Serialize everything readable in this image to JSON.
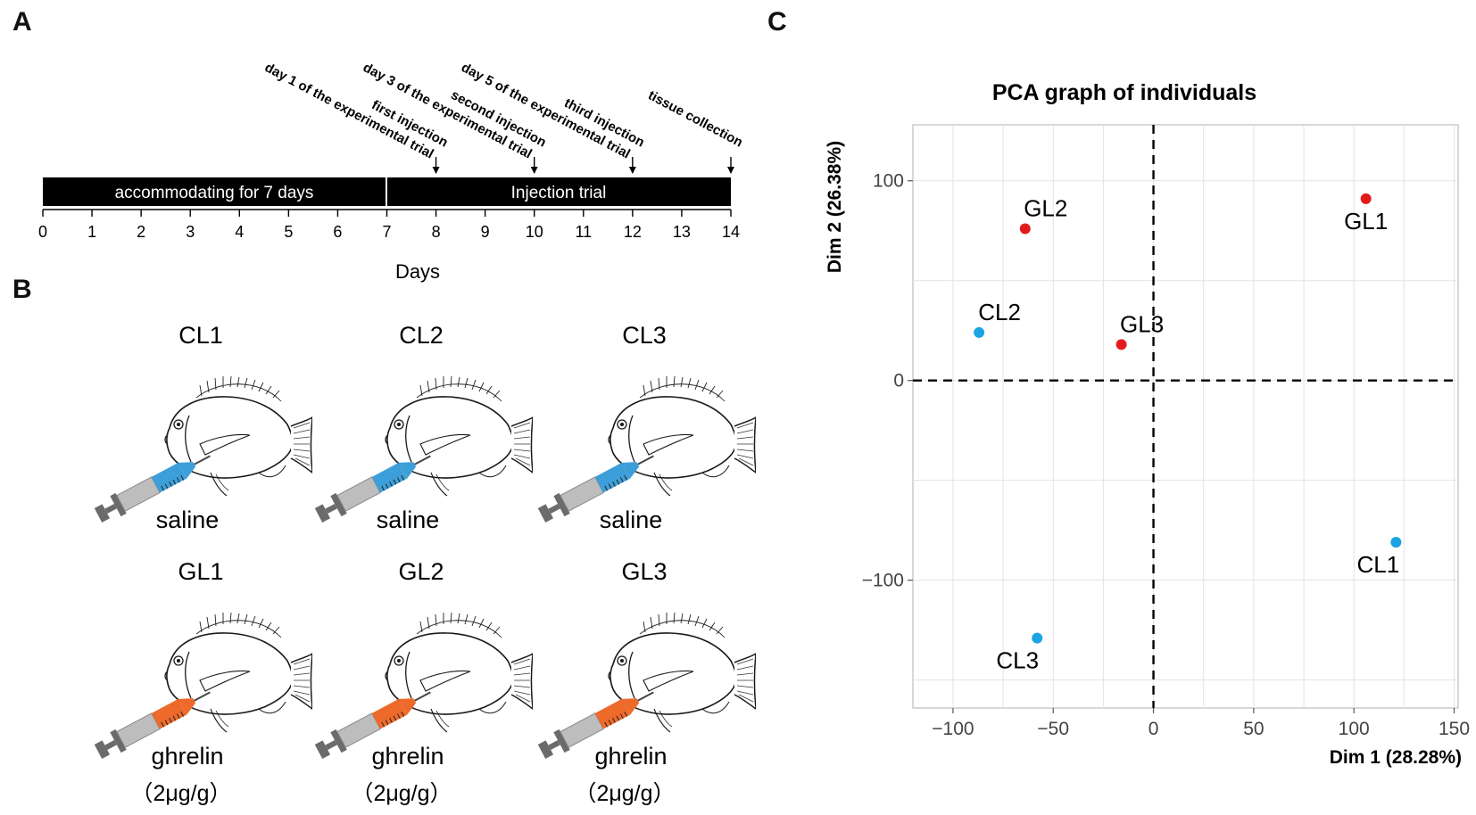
{
  "panels": {
    "a": "A",
    "b": "B",
    "c": "C"
  },
  "timeline": {
    "accommodation_label": "accommodating for 7 days",
    "trial_label": "Injection trial",
    "x_label": "Days",
    "ticks": [
      "0",
      "1",
      "2",
      "3",
      "4",
      "5",
      "6",
      "7",
      "8",
      "9",
      "10",
      "11",
      "12",
      "13",
      "14"
    ],
    "events": [
      {
        "day": 8,
        "line1": "first injection",
        "line2": "day 1 of the experimental trial"
      },
      {
        "day": 10,
        "line1": "second injection",
        "line2": "day 3 of the experimental trial"
      },
      {
        "day": 12,
        "line1": "third injection",
        "line2": "day 5 of the experimental trial"
      },
      {
        "day": 14,
        "line1": "tissue collection",
        "line2": ""
      }
    ]
  },
  "groups": [
    {
      "label": "CL1",
      "treatment": "saline",
      "dose": ""
    },
    {
      "label": "CL2",
      "treatment": "saline",
      "dose": ""
    },
    {
      "label": "CL3",
      "treatment": "saline",
      "dose": ""
    },
    {
      "label": "GL1",
      "treatment": "ghrelin",
      "dose": "（2μg/g）"
    },
    {
      "label": "GL2",
      "treatment": "ghrelin",
      "dose": "（2μg/g）"
    },
    {
      "label": "GL3",
      "treatment": "ghrelin",
      "dose": "（2μg/g）"
    }
  ],
  "colors": {
    "saline": "#3d9fd9",
    "ghrelin": "#ee6a2a",
    "control_point": "#1ba3e3",
    "ghrelin_point": "#e31a1c"
  },
  "chart_data": {
    "type": "scatter",
    "title": "PCA graph of individuals",
    "xlabel": "Dim 1 (28.28%)",
    "ylabel": "Dim 2 (26.38%)",
    "xlim": [
      -120,
      152
    ],
    "ylim": [
      -164,
      128
    ],
    "xticks": [
      -100,
      -50,
      0,
      50,
      100,
      150
    ],
    "yticks": [
      -100,
      0,
      100
    ],
    "xtick_labels": [
      "−100",
      "−50",
      "0",
      "50",
      "100",
      "150"
    ],
    "ytick_labels": [
      "−100",
      "0",
      "100"
    ],
    "points": [
      {
        "label": "GL1",
        "x": 106,
        "y": 91,
        "group": "ghrelin"
      },
      {
        "label": "GL2",
        "x": -64,
        "y": 76,
        "group": "ghrelin"
      },
      {
        "label": "GL3",
        "x": -16,
        "y": 18,
        "group": "ghrelin"
      },
      {
        "label": "CL1",
        "x": 121,
        "y": -81,
        "group": "control"
      },
      {
        "label": "CL2",
        "x": -87,
        "y": 24,
        "group": "control"
      },
      {
        "label": "CL3",
        "x": -58,
        "y": -129,
        "group": "control"
      }
    ]
  }
}
